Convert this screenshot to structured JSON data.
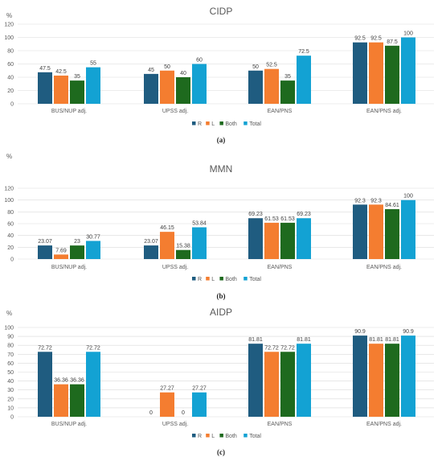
{
  "chart_data": [
    {
      "type": "bar",
      "title": "CIDP",
      "ylabel": "%",
      "caption": "(a)",
      "ylim": [
        0,
        120
      ],
      "yticks": [
        "0",
        "20",
        "40",
        "60",
        "80",
        "100",
        "120"
      ],
      "ytick_values": [
        0,
        20,
        40,
        60,
        80,
        100,
        120
      ],
      "categories": [
        "BUS/NUP adj.",
        "UPSS adj.",
        "EAN/PNS",
        "EAN/PNS adj."
      ],
      "legend_position": "bottom-right",
      "series": [
        {
          "name": "R",
          "color": "#1f5c80",
          "values": [
            47.5,
            45,
            50,
            92.5
          ],
          "labels": [
            "47.5",
            "45",
            "50",
            "92.5"
          ]
        },
        {
          "name": "L",
          "color": "#f47d30",
          "values": [
            42.5,
            50,
            52.5,
            92.5
          ],
          "labels": [
            "42.5",
            "50",
            "52.5",
            "92.5"
          ]
        },
        {
          "name": "Both",
          "color": "#1e6a1e",
          "values": [
            35,
            40,
            35,
            87.5
          ],
          "labels": [
            "35",
            "40",
            "35",
            "87.5"
          ]
        },
        {
          "name": "Total",
          "color": "#13a2d3",
          "values": [
            55,
            60,
            72.5,
            100
          ],
          "labels": [
            "55",
            "60",
            "72.5",
            "100"
          ]
        }
      ]
    },
    {
      "type": "bar",
      "title": "MMN",
      "ylabel": "%",
      "caption": "(b)",
      "ylim": [
        0,
        120
      ],
      "yticks": [
        "0",
        "20",
        "40",
        "60",
        "80",
        "100",
        "120"
      ],
      "ytick_values": [
        0,
        20,
        40,
        60,
        80,
        100,
        120
      ],
      "categories": [
        "BUS/NUP adj.",
        "UPSS adj.",
        "EAN/PNS",
        "EAN/PNS adj."
      ],
      "legend_position": "bottom-right",
      "series": [
        {
          "name": "R",
          "color": "#1f5c80",
          "values": [
            23.07,
            23.07,
            69.23,
            92.3
          ],
          "labels": [
            "23.07",
            "23.07",
            "69.23",
            "92.3"
          ]
        },
        {
          "name": "L",
          "color": "#f47d30",
          "values": [
            7.69,
            46.15,
            61.53,
            92.3
          ],
          "labels": [
            "7.69",
            "46.15",
            "61.53",
            "92.3"
          ]
        },
        {
          "name": "Both",
          "color": "#1e6a1e",
          "values": [
            23,
            15.38,
            61.53,
            84.61
          ],
          "labels": [
            "23",
            "15.38",
            "61.53",
            "84.61"
          ]
        },
        {
          "name": "Total",
          "color": "#13a2d3",
          "values": [
            30.77,
            53.84,
            69.23,
            100
          ],
          "labels": [
            "30.77",
            "53.84",
            "69.23",
            "100"
          ]
        }
      ]
    },
    {
      "type": "bar",
      "title": "AIDP",
      "ylabel": "%",
      "caption": "(c)",
      "ylim": [
        0,
        100
      ],
      "yticks": [
        "0",
        "10",
        "20",
        "30",
        "40",
        "50",
        "60",
        "70",
        "80",
        "90",
        "100"
      ],
      "ytick_values": [
        0,
        10,
        20,
        30,
        40,
        50,
        60,
        70,
        80,
        90,
        100
      ],
      "categories": [
        "BUS/NUP adj.",
        "UPSS adj.",
        "EAN/PNS",
        "EAN/PNS adj."
      ],
      "legend_position": "bottom-right",
      "series": [
        {
          "name": "R",
          "color": "#1f5c80",
          "values": [
            72.72,
            0,
            81.81,
            90.9
          ],
          "labels": [
            "72.72",
            "0",
            "81.81",
            "90.9"
          ]
        },
        {
          "name": "L",
          "color": "#f47d30",
          "values": [
            36.36,
            27.27,
            72.72,
            81.81
          ],
          "labels": [
            "36.36",
            "27.27",
            "72.72",
            "81.81"
          ]
        },
        {
          "name": "Both",
          "color": "#1e6a1e",
          "values": [
            36.36,
            0,
            72.72,
            81.81
          ],
          "labels": [
            "36.36",
            "0",
            "72.72",
            "81.81"
          ]
        },
        {
          "name": "Total",
          "color": "#13a2d3",
          "values": [
            72.72,
            27.27,
            81.81,
            90.9
          ],
          "labels": [
            "72.72",
            "27.27",
            "81.81",
            "90.9"
          ]
        }
      ]
    }
  ]
}
